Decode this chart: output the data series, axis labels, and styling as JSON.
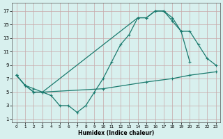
{
  "xlabel": "Humidex (Indice chaleur)",
  "background_color": "#d8f0ee",
  "grid_color": "#c8a8a8",
  "line_color": "#1a7a6e",
  "xlim": [
    -0.5,
    23.5
  ],
  "ylim": [
    0.5,
    18.2
  ],
  "xticks": [
    0,
    1,
    2,
    3,
    4,
    5,
    6,
    7,
    8,
    9,
    10,
    11,
    12,
    13,
    14,
    15,
    16,
    17,
    18,
    19,
    20,
    21,
    22,
    23
  ],
  "yticks": [
    1,
    3,
    5,
    7,
    9,
    11,
    13,
    15,
    17
  ],
  "lA_x": [
    0,
    1,
    2,
    3,
    4,
    5,
    6,
    7,
    8,
    9,
    10,
    11,
    12,
    13,
    14,
    15,
    16,
    17,
    18,
    19,
    20
  ],
  "lA_y": [
    7.5,
    6.0,
    5.0,
    5.0,
    4.5,
    3.0,
    3.0,
    2.0,
    3.0,
    5.0,
    7.0,
    9.5,
    12.0,
    13.5,
    16.0,
    16.0,
    17.0,
    17.0,
    16.0,
    14.0,
    9.5
  ],
  "lB_x": [
    0,
    1,
    2,
    3,
    14,
    15,
    16,
    17,
    18,
    19,
    20,
    21,
    22,
    23
  ],
  "lB_y": [
    7.5,
    6.0,
    5.0,
    5.0,
    16.0,
    16.0,
    17.0,
    17.0,
    15.5,
    14.0,
    14.0,
    12.0,
    10.0,
    9.0
  ],
  "lC_x": [
    0,
    1,
    2,
    3,
    10,
    15,
    18,
    20,
    23
  ],
  "lC_y": [
    7.5,
    6.0,
    5.5,
    5.0,
    5.5,
    6.5,
    7.0,
    7.5,
    8.0
  ]
}
